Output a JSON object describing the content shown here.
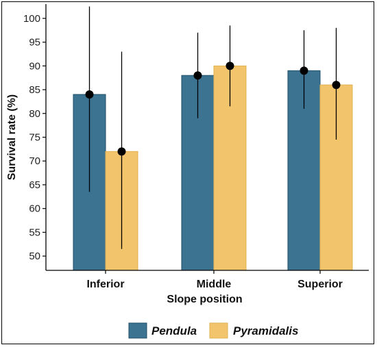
{
  "chart_data": {
    "type": "bar",
    "title": "",
    "xlabel": "Slope position",
    "ylabel": "Survival rate (%)",
    "categories": [
      "Inferior",
      "Middle",
      "Superior"
    ],
    "ylim": [
      47,
      103
    ],
    "yticks": [
      50,
      55,
      60,
      65,
      70,
      75,
      80,
      85,
      90,
      95,
      100
    ],
    "grid": false,
    "legend_position": "bottom",
    "series": [
      {
        "name": "Pendula",
        "color": "#3b7391",
        "values": [
          84,
          88,
          89
        ],
        "error_low": [
          63.5,
          79,
          81
        ],
        "error_high": [
          102.5,
          97,
          97.5
        ]
      },
      {
        "name": "Pyramidalis",
        "color": "#f2c46b",
        "values": [
          72,
          90,
          86
        ],
        "error_low": [
          51.5,
          81.5,
          74.5
        ],
        "error_high": [
          93,
          98.5,
          98
        ]
      }
    ]
  }
}
